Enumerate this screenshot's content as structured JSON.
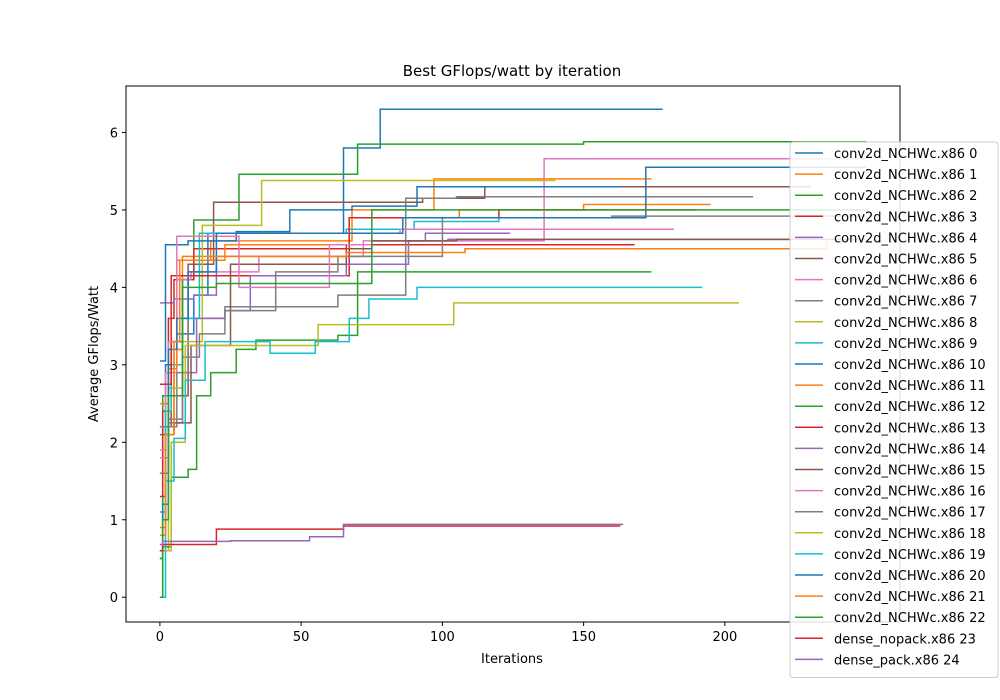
{
  "chart_data": {
    "type": "line",
    "title": "Best GFlops/watt by iteration",
    "xlabel": "Iterations",
    "ylabel": "Average GFlops/Watt",
    "xlim": [
      -12,
      262
    ],
    "ylim": [
      -0.32,
      6.6
    ],
    "xticks": [
      0,
      50,
      100,
      150,
      200
    ],
    "yticks": [
      0,
      1,
      2,
      3,
      4,
      5,
      6
    ],
    "grid": false,
    "legend_position": "right",
    "series": [
      {
        "name": "conv2d_NCHWc.x86 0",
        "color": "#1f77b4",
        "points": [
          [
            0,
            0.5
          ],
          [
            1,
            1.3
          ],
          [
            2,
            3.0
          ],
          [
            6,
            3.4
          ],
          [
            12,
            3.9
          ],
          [
            17,
            4.7
          ],
          [
            65,
            5.8
          ],
          [
            78,
            6.3
          ],
          [
            178,
            6.3
          ]
        ]
      },
      {
        "name": "conv2d_NCHWc.x86 1",
        "color": "#ff7f0e",
        "points": [
          [
            0,
            0.9
          ],
          [
            2,
            2.2
          ],
          [
            5,
            3.2
          ],
          [
            8,
            4.4
          ],
          [
            18,
            4.6
          ],
          [
            68,
            5.0
          ],
          [
            97,
            5.4
          ],
          [
            174,
            5.4
          ]
        ]
      },
      {
        "name": "conv2d_NCHWc.x86 2",
        "color": "#2ca02c",
        "points": [
          [
            0,
            0.0
          ],
          [
            1,
            2.6
          ],
          [
            4,
            3.3
          ],
          [
            8,
            4.1
          ],
          [
            12,
            4.87
          ],
          [
            28,
            5.46
          ],
          [
            70,
            5.85
          ],
          [
            150,
            5.88
          ],
          [
            250,
            5.88
          ]
        ]
      },
      {
        "name": "conv2d_NCHWc.x86 3",
        "color": "#d62728",
        "points": [
          [
            0,
            1.3
          ],
          [
            1,
            2.4
          ],
          [
            3,
            3.6
          ],
          [
            5,
            4.1
          ],
          [
            9,
            4.1
          ],
          [
            12,
            4.5
          ],
          [
            66,
            4.55
          ],
          [
            168,
            4.55
          ]
        ]
      },
      {
        "name": "conv2d_NCHWc.x86 4",
        "color": "#9467bd",
        "points": [
          [
            0,
            3.8
          ],
          [
            5,
            3.85
          ],
          [
            12,
            3.9
          ],
          [
            20,
            4.4
          ],
          [
            75,
            4.6
          ],
          [
            94,
            4.7
          ],
          [
            124,
            4.7
          ]
        ]
      },
      {
        "name": "conv2d_NCHWc.x86 5",
        "color": "#8c564b",
        "points": [
          [
            0,
            2.2
          ],
          [
            4,
            2.6
          ],
          [
            10,
            4.3
          ],
          [
            19,
            5.1
          ],
          [
            93,
            5.15
          ],
          [
            115,
            5.3
          ],
          [
            230,
            5.32
          ]
        ]
      },
      {
        "name": "conv2d_NCHWc.x86 6",
        "color": "#e377c2",
        "points": [
          [
            0,
            1.9
          ],
          [
            2,
            2.9
          ],
          [
            6,
            4.1
          ],
          [
            11,
            4.2
          ],
          [
            35,
            4.4
          ],
          [
            72,
            4.6
          ],
          [
            136,
            5.66
          ],
          [
            250,
            5.66
          ]
        ]
      },
      {
        "name": "conv2d_NCHWc.x86 7",
        "color": "#7f7f7f",
        "points": [
          [
            0,
            2.2
          ],
          [
            6,
            2.9
          ],
          [
            10,
            3.6
          ],
          [
            23,
            3.75
          ],
          [
            63,
            3.9
          ],
          [
            87,
            5.15
          ],
          [
            105,
            5.17
          ],
          [
            210,
            5.17
          ]
        ]
      },
      {
        "name": "conv2d_NCHWc.x86 8",
        "color": "#bcbd22",
        "points": [
          [
            0,
            0.6
          ],
          [
            3,
            2.7
          ],
          [
            8,
            3.3
          ],
          [
            15,
            4.8
          ],
          [
            36,
            5.38
          ],
          [
            140,
            5.38
          ]
        ]
      },
      {
        "name": "conv2d_NCHWc.x86 9",
        "color": "#17becf",
        "points": [
          [
            0,
            1.1
          ],
          [
            2,
            2.4
          ],
          [
            4,
            3.0
          ],
          [
            8,
            3.6
          ],
          [
            14,
            4.7
          ],
          [
            66,
            4.75
          ],
          [
            90,
            4.85
          ],
          [
            120,
            4.9
          ],
          [
            172,
            4.9
          ]
        ]
      },
      {
        "name": "conv2d_NCHWc.x86 10",
        "color": "#1f77b4",
        "points": [
          [
            0,
            3.05
          ],
          [
            2,
            4.55
          ],
          [
            10,
            4.6
          ],
          [
            27,
            4.72
          ],
          [
            46,
            5.0
          ],
          [
            68,
            5.05
          ],
          [
            91,
            5.3
          ],
          [
            163,
            5.3
          ]
        ]
      },
      {
        "name": "conv2d_NCHWc.x86 11",
        "color": "#ff7f0e",
        "points": [
          [
            0,
            2.5
          ],
          [
            3,
            2.95
          ],
          [
            6,
            4.35
          ],
          [
            23,
            4.55
          ],
          [
            67,
            4.9
          ],
          [
            106,
            5.0
          ],
          [
            150,
            5.07
          ],
          [
            195,
            5.07
          ]
        ]
      },
      {
        "name": "conv2d_NCHWc.x86 12",
        "color": "#2ca02c",
        "points": [
          [
            0,
            0.5
          ],
          [
            1,
            0.65
          ],
          [
            4,
            1.55
          ],
          [
            10,
            1.65
          ],
          [
            13,
            2.6
          ],
          [
            18,
            2.9
          ],
          [
            27,
            3.2
          ],
          [
            34,
            3.32
          ],
          [
            63,
            3.38
          ],
          [
            70,
            4.2
          ],
          [
            174,
            4.2
          ]
        ]
      },
      {
        "name": "conv2d_NCHWc.x86 13",
        "color": "#d62728",
        "points": [
          [
            0,
            2.75
          ],
          [
            4,
            4.15
          ],
          [
            10,
            4.15
          ],
          [
            67,
            4.9
          ],
          [
            120,
            5.0
          ],
          [
            190,
            5.0
          ]
        ]
      },
      {
        "name": "conv2d_NCHWc.x86 14",
        "color": "#9467bd",
        "points": [
          [
            0,
            1.6
          ],
          [
            3,
            2.25
          ],
          [
            8,
            2.9
          ],
          [
            13,
            3.6
          ],
          [
            23,
            3.7
          ],
          [
            32,
            4.15
          ],
          [
            66,
            4.3
          ],
          [
            88,
            4.6
          ],
          [
            102,
            4.62
          ],
          [
            250,
            4.62
          ]
        ]
      },
      {
        "name": "conv2d_NCHWc.x86 15",
        "color": "#8c564b",
        "points": [
          [
            0,
            2.1
          ],
          [
            5,
            2.25
          ],
          [
            11,
            3.25
          ],
          [
            25,
            4.3
          ],
          [
            66,
            4.5
          ],
          [
            75,
            4.6
          ],
          [
            105,
            4.62
          ],
          [
            245,
            4.62
          ]
        ]
      },
      {
        "name": "conv2d_NCHWc.x86 16",
        "color": "#e377c2",
        "points": [
          [
            0,
            1.8
          ],
          [
            3,
            3.3
          ],
          [
            6,
            4.66
          ],
          [
            28,
            4.0
          ],
          [
            60,
            4.55
          ],
          [
            75,
            4.7
          ],
          [
            85,
            4.75
          ],
          [
            182,
            4.75
          ]
        ]
      },
      {
        "name": "conv2d_NCHWc.x86 17",
        "color": "#7f7f7f",
        "points": [
          [
            0,
            1.6
          ],
          [
            3,
            2.3
          ],
          [
            8,
            3.1
          ],
          [
            14,
            3.4
          ],
          [
            23,
            3.7
          ],
          [
            41,
            4.2
          ],
          [
            63,
            4.4
          ],
          [
            100,
            4.9
          ],
          [
            160,
            4.92
          ],
          [
            250,
            4.92
          ]
        ]
      },
      {
        "name": "conv2d_NCHWc.x86 18",
        "color": "#bcbd22",
        "points": [
          [
            0,
            0.6
          ],
          [
            4,
            2.0
          ],
          [
            9,
            3.25
          ],
          [
            19,
            3.25
          ],
          [
            35,
            3.25
          ],
          [
            56,
            3.52
          ],
          [
            88,
            3.52
          ],
          [
            104,
            3.8
          ],
          [
            205,
            3.8
          ]
        ]
      },
      {
        "name": "conv2d_NCHWc.x86 19",
        "color": "#17becf",
        "points": [
          [
            0,
            0.0
          ],
          [
            2,
            1.5
          ],
          [
            5,
            2.05
          ],
          [
            9,
            2.8
          ],
          [
            16,
            3.3
          ],
          [
            39,
            3.15
          ],
          [
            55,
            3.3
          ],
          [
            67,
            3.6
          ],
          [
            74,
            3.85
          ],
          [
            91,
            4.0
          ],
          [
            192,
            4.0
          ]
        ]
      },
      {
        "name": "conv2d_NCHWc.x86 20",
        "color": "#1f77b4",
        "points": [
          [
            0,
            0.6
          ],
          [
            1,
            1.2
          ],
          [
            3,
            3.2
          ],
          [
            6,
            3.6
          ],
          [
            10,
            4.2
          ],
          [
            20,
            4.7
          ],
          [
            86,
            4.9
          ],
          [
            172,
            5.55
          ],
          [
            250,
            5.55
          ]
        ]
      },
      {
        "name": "conv2d_NCHWc.x86 21",
        "color": "#ff7f0e",
        "points": [
          [
            0,
            0.8
          ],
          [
            2,
            2.1
          ],
          [
            5,
            3.3
          ],
          [
            7,
            4.35
          ],
          [
            18,
            4.4
          ],
          [
            66,
            4.45
          ],
          [
            108,
            4.5
          ],
          [
            236,
            4.6
          ]
        ]
      },
      {
        "name": "conv2d_NCHWc.x86 22",
        "color": "#2ca02c",
        "points": [
          [
            0,
            0.0
          ],
          [
            1,
            1.0
          ],
          [
            3,
            2.6
          ],
          [
            8,
            4.0
          ],
          [
            20,
            4.05
          ],
          [
            75,
            5.0
          ],
          [
            140,
            5.0
          ],
          [
            250,
            5.0
          ]
        ]
      },
      {
        "name": "dense_nopack.x86 23",
        "color": "#d62728",
        "points": [
          [
            0,
            0.6
          ],
          [
            1,
            0.68
          ],
          [
            20,
            0.88
          ],
          [
            65,
            0.92
          ],
          [
            163,
            0.92
          ]
        ]
      },
      {
        "name": "dense_pack.x86 24",
        "color": "#9467bd",
        "points": [
          [
            0,
            0.68
          ],
          [
            1,
            0.72
          ],
          [
            25,
            0.73
          ],
          [
            53,
            0.78
          ],
          [
            65,
            0.94
          ],
          [
            164,
            0.94
          ]
        ]
      }
    ]
  }
}
